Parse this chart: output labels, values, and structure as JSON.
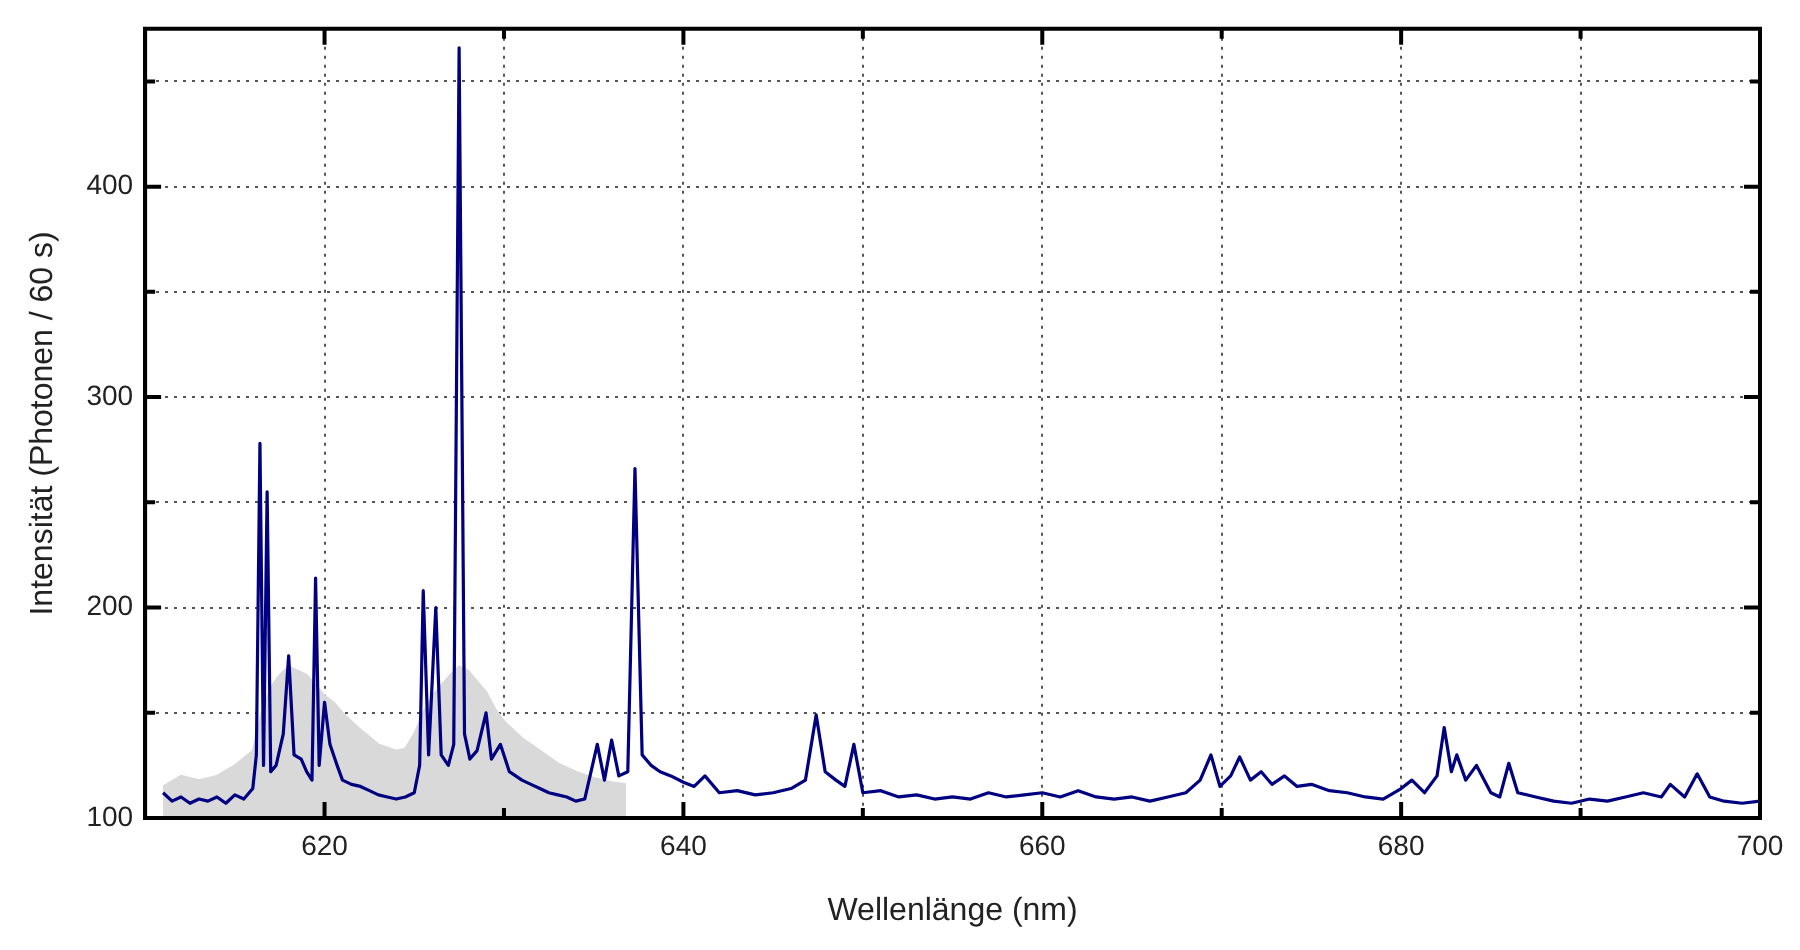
{
  "chart_data": {
    "type": "line",
    "xlabel": "Wellenlänge (nm)",
    "ylabel": "Intensität (Photonen / 60 s)",
    "xlim": [
      610,
      700
    ],
    "ylim": [
      100,
      475
    ],
    "xticks": [
      620,
      {
        "value": 630,
        "label": null
      },
      640,
      {
        "value": 650,
        "label": null
      },
      660,
      {
        "value": 670,
        "label": null
      },
      680,
      {
        "value": 690,
        "label": null
      },
      700
    ],
    "yticks": [
      100,
      {
        "value": 150,
        "label": null
      },
      200,
      {
        "value": 250,
        "label": null
      },
      300,
      {
        "value": 350,
        "label": null
      },
      400,
      {
        "value": 450,
        "label": null
      }
    ],
    "grid": true,
    "marker": "none",
    "line_style": "solid",
    "series": [
      {
        "type": "area",
        "color": "#d9d9d9",
        "x": [
          611,
          612,
          613,
          614,
          615,
          616,
          616.5,
          617,
          617.5,
          618,
          618.5,
          619,
          619.5,
          620,
          620.5,
          621,
          622,
          623,
          624,
          624.5,
          625,
          625.5,
          626,
          626.5,
          627,
          627.5,
          628,
          628.5,
          629,
          629.5,
          630,
          631,
          632,
          633,
          634,
          635,
          636,
          636.8
        ],
        "values": [
          115,
          120,
          118,
          120,
          125,
          132,
          150,
          162,
          168,
          172,
          170,
          168,
          163,
          158,
          155,
          150,
          142,
          135,
          132,
          133,
          140,
          150,
          158,
          163,
          168,
          172,
          170,
          165,
          160,
          152,
          146,
          138,
          132,
          126,
          122,
          119,
          117,
          116
        ]
      },
      {
        "type": "line",
        "color": "#000080",
        "x": [
          611,
          611.5,
          612,
          612.5,
          613,
          613.5,
          614,
          614.5,
          615,
          615.5,
          616,
          616.2,
          616.4,
          616.6,
          616.8,
          617.0,
          617.3,
          617.7,
          618.0,
          618.3,
          618.7,
          619.0,
          619.3,
          619.5,
          619.7,
          620.0,
          620.3,
          620.7,
          621.0,
          621.5,
          622,
          622.5,
          623,
          623.5,
          624,
          624.5,
          625,
          625.3,
          625.5,
          625.8,
          626.2,
          626.5,
          626.9,
          627.2,
          627.5,
          627.8,
          628.1,
          628.5,
          629.0,
          629.3,
          629.8,
          630.3,
          631,
          631.5,
          632,
          632.5,
          633,
          633.5,
          634,
          634.5,
          635.2,
          635.6,
          636.0,
          636.4,
          636.9,
          637.3,
          637.7,
          638.2,
          638.7,
          639.3,
          640,
          640.6,
          641.2,
          642,
          643,
          644,
          645,
          646,
          646.8,
          647.4,
          647.9,
          648.5,
          649.0,
          649.5,
          650.0,
          651,
          652,
          653,
          654,
          655,
          656,
          657,
          658,
          659,
          660,
          661,
          662,
          663,
          664,
          665,
          666,
          667,
          668,
          668.8,
          669.4,
          669.9,
          670.5,
          671,
          671.6,
          672.2,
          672.8,
          673.5,
          674.2,
          675,
          676,
          677,
          678,
          679,
          680,
          680.6,
          681.3,
          682,
          682.4,
          682.8,
          683.1,
          683.6,
          684.2,
          685,
          685.5,
          686,
          686.5,
          687.5,
          688.5,
          689.5,
          690.5,
          691.5,
          692.5,
          693.5,
          694.5,
          695,
          695.8,
          696.5,
          697.2,
          698,
          699,
          700
        ],
        "values": [
          112,
          108,
          110,
          107,
          109,
          108,
          110,
          107,
          111,
          109,
          114,
          130,
          278,
          125,
          255,
          122,
          125,
          140,
          177,
          130,
          128,
          122,
          118,
          214,
          125,
          155,
          135,
          125,
          118,
          116,
          115,
          113,
          111,
          110,
          109,
          110,
          112,
          125,
          208,
          130,
          200,
          130,
          125,
          135,
          466,
          140,
          128,
          132,
          150,
          128,
          135,
          122,
          118,
          116,
          114,
          112,
          111,
          110,
          108,
          109,
          135,
          118,
          137,
          120,
          122,
          266,
          130,
          125,
          122,
          120,
          117,
          115,
          120,
          112,
          113,
          111,
          112,
          114,
          118,
          149,
          122,
          118,
          115,
          135,
          112,
          113,
          110,
          111,
          109,
          110,
          109,
          112,
          110,
          111,
          112,
          110,
          113,
          110,
          109,
          110,
          108,
          110,
          112,
          118,
          130,
          115,
          120,
          129,
          118,
          122,
          116,
          120,
          115,
          116,
          113,
          112,
          110,
          109,
          114,
          118,
          112,
          120,
          143,
          122,
          130,
          118,
          125,
          112,
          110,
          126,
          112,
          110,
          108,
          107,
          109,
          108,
          110,
          112,
          110,
          116,
          110,
          121,
          110,
          108,
          107,
          108
        ]
      }
    ]
  }
}
